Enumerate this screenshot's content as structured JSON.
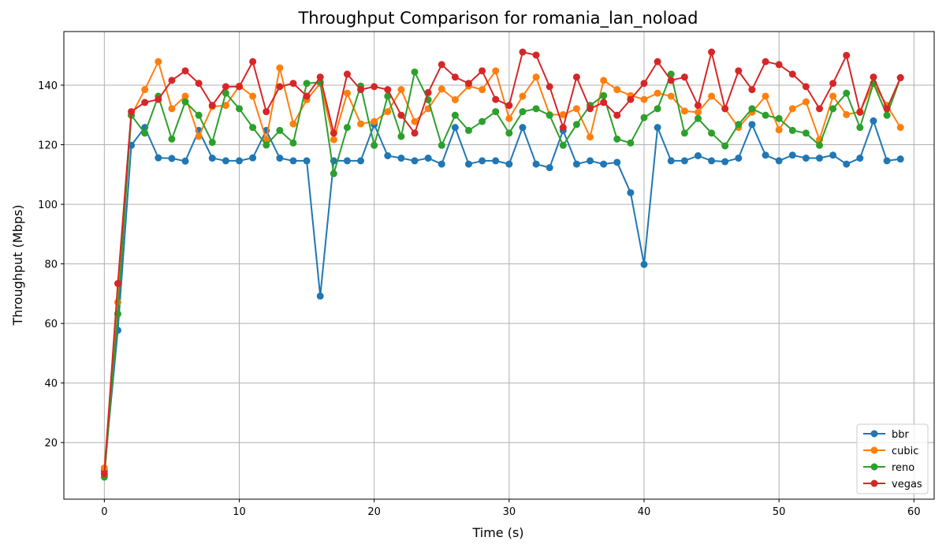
{
  "chart_data": {
    "type": "line",
    "title": "Throughput Comparison for romania_lan_noload",
    "xlabel": "Time (s)",
    "ylabel": "Throughput (Mbps)",
    "xlim": [
      -3,
      61.5
    ],
    "ylim": [
      1,
      158
    ],
    "xticks": [
      0,
      10,
      20,
      30,
      40,
      50,
      60
    ],
    "yticks": [
      20,
      40,
      60,
      80,
      100,
      120,
      140
    ],
    "grid": true,
    "legend_position": "lower right",
    "x": [
      0,
      1,
      2,
      3,
      4,
      5,
      6,
      7,
      8,
      9,
      10,
      11,
      12,
      13,
      14,
      15,
      16,
      17,
      18,
      19,
      20,
      21,
      22,
      23,
      24,
      25,
      26,
      27,
      28,
      29,
      30,
      31,
      32,
      33,
      34,
      35,
      36,
      37,
      38,
      39,
      40,
      41,
      42,
      43,
      44,
      45,
      46,
      47,
      48,
      49,
      50,
      51,
      52,
      53,
      54,
      55,
      56,
      57,
      58,
      59
    ],
    "series": [
      {
        "name": "bbr",
        "color": "#1f77b4",
        "values": [
          10.5,
          57.7,
          119.8,
          125.8,
          115.6,
          115.4,
          114.5,
          124.8,
          115.5,
          114.6,
          114.6,
          115.6,
          124.8,
          115.5,
          114.6,
          114.6,
          69.2,
          114.6,
          114.6,
          114.6,
          126.8,
          116.3,
          115.5,
          114.6,
          115.5,
          113.5,
          125.8,
          113.5,
          114.6,
          114.6,
          113.5,
          125.8,
          113.5,
          112.3,
          124.8,
          113.5,
          114.6,
          113.5,
          114.1,
          103.9,
          79.8,
          125.8,
          114.6,
          114.6,
          116.3,
          114.6,
          114.3,
          115.5,
          126.8,
          116.5,
          114.6,
          116.5,
          115.5,
          115.5,
          116.5,
          113.5,
          115.5,
          128.0,
          114.6,
          115.2
        ]
      },
      {
        "name": "cubic",
        "color": "#ff7f0e",
        "values": [
          11.5,
          67.1,
          129.9,
          138.5,
          147.9,
          132.1,
          136.3,
          122.8,
          132.8,
          133.2,
          139.7,
          136.3,
          121.7,
          145.8,
          127.0,
          135.1,
          140.6,
          121.7,
          137.3,
          127.0,
          127.8,
          131.1,
          138.5,
          127.8,
          132.1,
          138.7,
          135.1,
          139.7,
          138.5,
          144.8,
          128.8,
          136.3,
          142.7,
          130.1,
          130.1,
          132.1,
          122.6,
          141.6,
          138.5,
          136.5,
          135.2,
          137.3,
          136.3,
          131.3,
          130.9,
          136.3,
          132.1,
          125.8,
          130.9,
          136.3,
          125.0,
          132.1,
          134.4,
          121.7,
          136.3,
          130.1,
          131.1,
          140.6,
          133.2,
          125.8
        ]
      },
      {
        "name": "reno",
        "color": "#2ca02c",
        "values": [
          8.4,
          63.2,
          129.9,
          123.9,
          136.3,
          121.9,
          134.4,
          129.9,
          120.8,
          137.3,
          132.1,
          125.8,
          119.9,
          124.8,
          120.6,
          140.6,
          141.0,
          110.3,
          125.8,
          139.7,
          119.8,
          136.3,
          122.8,
          144.4,
          135.1,
          119.8,
          129.9,
          124.8,
          127.8,
          131.1,
          123.9,
          131.1,
          132.1,
          129.9,
          119.8,
          126.8,
          133.2,
          136.5,
          121.9,
          120.6,
          129.1,
          132.1,
          143.7,
          123.9,
          128.8,
          123.9,
          119.6,
          126.8,
          132.1,
          129.9,
          128.8,
          124.8,
          123.9,
          119.8,
          132.1,
          137.3,
          125.8,
          140.6,
          129.9,
          142.5
        ]
      },
      {
        "name": "vegas",
        "color": "#d62728",
        "values": [
          9.5,
          73.4,
          131.1,
          134.2,
          135.2,
          141.6,
          144.8,
          140.6,
          133.2,
          139.5,
          139.5,
          147.9,
          131.1,
          139.5,
          140.6,
          136.3,
          142.7,
          123.9,
          143.7,
          138.5,
          139.5,
          138.5,
          129.9,
          123.9,
          137.5,
          146.9,
          142.7,
          140.6,
          144.8,
          135.2,
          133.2,
          151.1,
          150.1,
          139.5,
          125.8,
          142.7,
          132.1,
          134.2,
          129.9,
          135.2,
          140.6,
          147.9,
          141.6,
          142.7,
          133.2,
          151.1,
          132.1,
          144.8,
          138.5,
          147.9,
          146.9,
          143.7,
          139.5,
          132.1,
          140.6,
          150.0,
          130.9,
          142.7,
          132.1,
          142.5
        ]
      }
    ]
  }
}
